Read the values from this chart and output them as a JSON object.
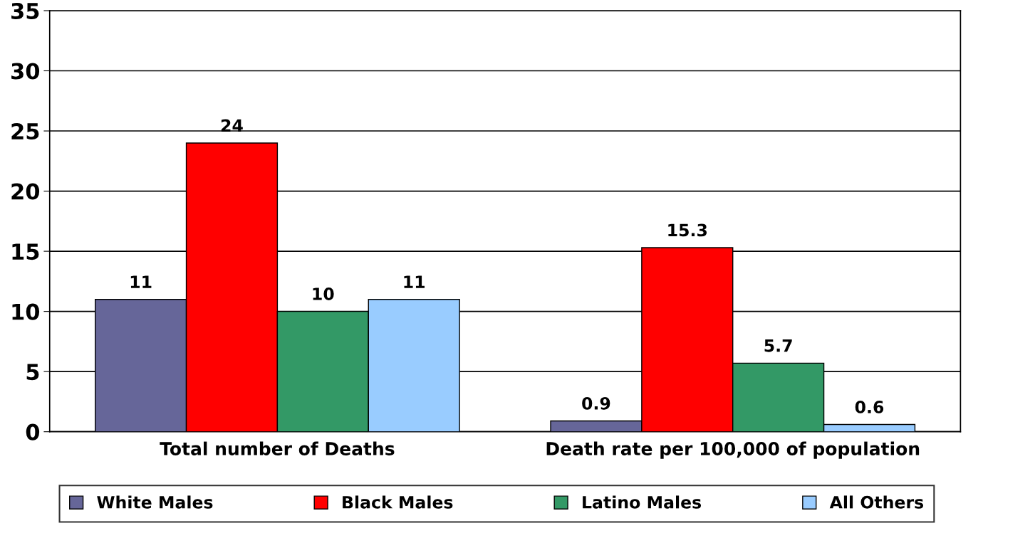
{
  "chart_data": {
    "type": "bar",
    "categories": [
      "Total number of Deaths",
      "Death rate per 100,000 of population"
    ],
    "series": [
      {
        "name": "White Males",
        "color": "#666699",
        "values": [
          11,
          0.9
        ]
      },
      {
        "name": "Black Males",
        "color": "#ff0000",
        "values": [
          24,
          15.3
        ]
      },
      {
        "name": "Latino Males",
        "color": "#339966",
        "values": [
          10,
          5.7
        ]
      },
      {
        "name": "All Others",
        "color": "#99ccff",
        "values": [
          11,
          0.6
        ]
      }
    ],
    "ylim": [
      0,
      35
    ],
    "yticks": [
      0,
      5,
      10,
      15,
      20,
      25,
      30,
      35
    ],
    "grid": "y",
    "legend": "bottom",
    "data_labels": true
  }
}
